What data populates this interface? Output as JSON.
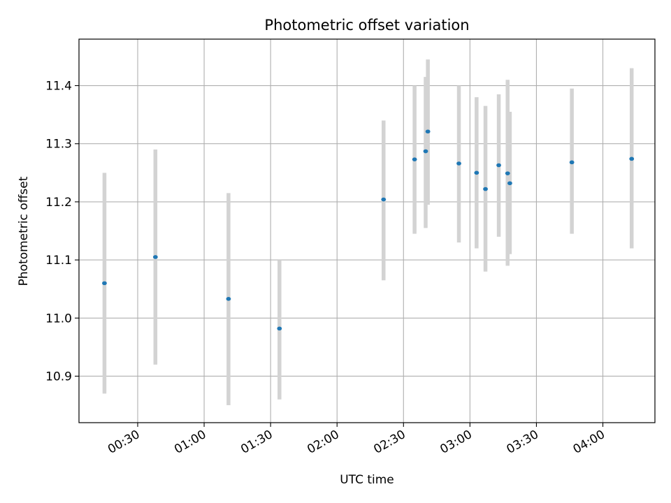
{
  "chart_data": {
    "type": "scatter",
    "title": "Photometric offset variation",
    "xlabel": "UTC time",
    "ylabel": "Photometric offset",
    "x_ticks": [
      "00:30",
      "01:00",
      "01:30",
      "02:00",
      "02:30",
      "03:00",
      "03:30",
      "04:00"
    ],
    "x_tick_minutes": [
      30,
      60,
      90,
      120,
      150,
      180,
      210,
      240
    ],
    "xlim_minutes": [
      3.5,
      263.5
    ],
    "ylim": [
      10.82,
      11.48
    ],
    "y_ticks": [
      10.9,
      11.0,
      11.1,
      11.2,
      11.3,
      11.4
    ],
    "grid": true,
    "marker_color": "#1f77b4",
    "errorbar_color": "#d3d3d3",
    "points": [
      {
        "x": "00:15",
        "y": 11.06,
        "ylo": 10.87,
        "yhi": 11.25
      },
      {
        "x": "00:38",
        "y": 11.105,
        "ylo": 10.92,
        "yhi": 11.29
      },
      {
        "x": "01:11",
        "y": 11.033,
        "ylo": 10.85,
        "yhi": 11.215
      },
      {
        "x": "01:34",
        "y": 10.982,
        "ylo": 10.86,
        "yhi": 11.1
      },
      {
        "x": "02:21",
        "y": 11.204,
        "ylo": 11.065,
        "yhi": 11.34
      },
      {
        "x": "02:35",
        "y": 11.273,
        "ylo": 11.145,
        "yhi": 11.4
      },
      {
        "x": "02:40",
        "y": 11.287,
        "ylo": 11.155,
        "yhi": 11.415
      },
      {
        "x": "02:41",
        "y": 11.321,
        "ylo": 11.195,
        "yhi": 11.445
      },
      {
        "x": "02:55",
        "y": 11.266,
        "ylo": 11.13,
        "yhi": 11.4
      },
      {
        "x": "03:03",
        "y": 11.25,
        "ylo": 11.12,
        "yhi": 11.38
      },
      {
        "x": "03:07",
        "y": 11.222,
        "ylo": 11.08,
        "yhi": 11.365
      },
      {
        "x": "03:13",
        "y": 11.263,
        "ylo": 11.14,
        "yhi": 11.385
      },
      {
        "x": "03:17",
        "y": 11.249,
        "ylo": 11.09,
        "yhi": 11.41
      },
      {
        "x": "03:18",
        "y": 11.232,
        "ylo": 11.11,
        "yhi": 11.355
      },
      {
        "x": "03:46",
        "y": 11.268,
        "ylo": 11.145,
        "yhi": 11.395
      },
      {
        "x": "04:13",
        "y": 11.274,
        "ylo": 11.12,
        "yhi": 11.43
      }
    ]
  }
}
